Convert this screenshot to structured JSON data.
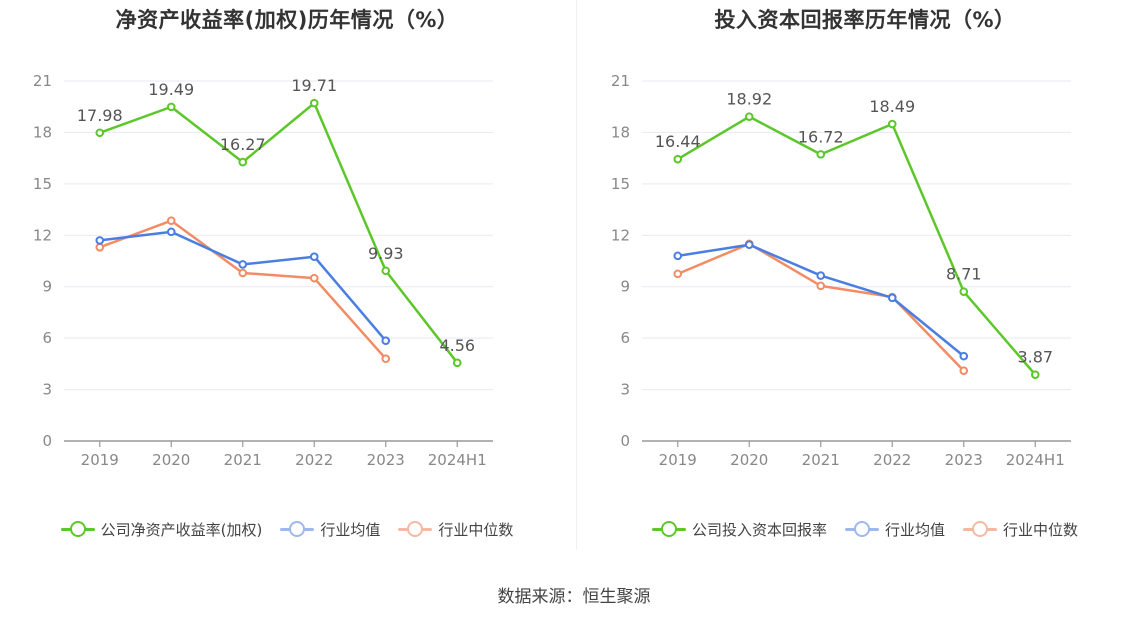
{
  "source": "数据来源：恒生聚源",
  "colors": {
    "company": "#5cc72a",
    "avg": "#4a7ee0",
    "median": "#f18c64",
    "grid": "#e6e9f0",
    "axis": "#999999",
    "tick_text": "#888888",
    "label_text": "#555555"
  },
  "chart_data": [
    {
      "type": "line",
      "title": "净资产收益率(加权)历年情况（%）",
      "categories": [
        "2019",
        "2020",
        "2021",
        "2022",
        "2023",
        "2024H1"
      ],
      "ylim": [
        0,
        21
      ],
      "yticks": [
        0,
        3,
        6,
        9,
        12,
        15,
        18,
        21
      ],
      "grid": true,
      "legend_position": "bottom-center",
      "series": [
        {
          "name": "公司净资产收益率(加权)",
          "key": "company",
          "values": [
            17.98,
            19.49,
            16.27,
            19.71,
            9.93,
            4.56
          ],
          "labels": [
            "17.98",
            "19.49",
            "16.27",
            "19.71",
            "9.93",
            "4.56"
          ]
        },
        {
          "name": "行业均值",
          "key": "avg",
          "values": [
            11.7,
            12.2,
            10.3,
            10.75,
            5.85,
            null
          ]
        },
        {
          "name": "行业中位数",
          "key": "median",
          "values": [
            11.3,
            12.85,
            9.8,
            9.5,
            4.8,
            null
          ]
        }
      ]
    },
    {
      "type": "line",
      "title": "投入资本回报率历年情况（%）",
      "categories": [
        "2019",
        "2020",
        "2021",
        "2022",
        "2023",
        "2024H1"
      ],
      "ylim": [
        0,
        21
      ],
      "yticks": [
        0,
        3,
        6,
        9,
        12,
        15,
        18,
        21
      ],
      "grid": true,
      "legend_position": "bottom-center",
      "series": [
        {
          "name": "公司投入资本回报率",
          "key": "company",
          "values": [
            16.44,
            18.92,
            16.72,
            18.49,
            8.71,
            3.87
          ],
          "labels": [
            "16.44",
            "18.92",
            "16.72",
            "18.49",
            "8.71",
            "3.87"
          ]
        },
        {
          "name": "行业均值",
          "key": "avg",
          "values": [
            10.8,
            11.45,
            9.65,
            8.35,
            4.95,
            null
          ]
        },
        {
          "name": "行业中位数",
          "key": "median",
          "values": [
            9.75,
            11.5,
            9.05,
            8.4,
            4.1,
            null
          ]
        }
      ]
    }
  ]
}
